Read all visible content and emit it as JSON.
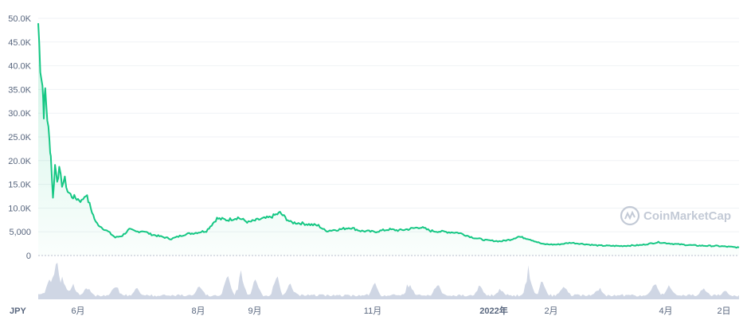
{
  "chart_data": {
    "type": "area",
    "currency_label": "JPY",
    "watermark": "CoinMarketCap",
    "y_ticks": [
      "0",
      "5,000",
      "10.0K",
      "15.0K",
      "20.0K",
      "25.0K",
      "30.0K",
      "35.0K",
      "40.0K",
      "45.0K",
      "50.0K"
    ],
    "ylim": [
      0,
      50000
    ],
    "x_ticks": [
      {
        "label": "6月",
        "bold": false
      },
      {
        "label": "8月",
        "bold": false
      },
      {
        "label": "9月",
        "bold": false
      },
      {
        "label": "11月",
        "bold": false
      },
      {
        "label": "2022年",
        "bold": true
      },
      {
        "label": "2月",
        "bold": false
      },
      {
        "label": "4月",
        "bold": false
      },
      {
        "label": "2日",
        "bold": false
      }
    ],
    "series": [
      {
        "kind": "price",
        "color": "#16c784",
        "points": [
          [
            0,
            49000
          ],
          [
            0.003,
            40000
          ],
          [
            0.006,
            36000
          ],
          [
            0.008,
            30000
          ],
          [
            0.01,
            35000
          ],
          [
            0.013,
            29000
          ],
          [
            0.016,
            24000
          ],
          [
            0.018,
            21000
          ],
          [
            0.021,
            12000
          ],
          [
            0.024,
            19000
          ],
          [
            0.027,
            16000
          ],
          [
            0.03,
            18000
          ],
          [
            0.034,
            15000
          ],
          [
            0.038,
            16000
          ],
          [
            0.042,
            13500
          ],
          [
            0.048,
            12500
          ],
          [
            0.055,
            12000
          ],
          [
            0.062,
            11500
          ],
          [
            0.068,
            13000
          ],
          [
            0.075,
            10000
          ],
          [
            0.082,
            7000
          ],
          [
            0.09,
            6000
          ],
          [
            0.1,
            5000
          ],
          [
            0.11,
            3800
          ],
          [
            0.12,
            4200
          ],
          [
            0.13,
            5500
          ],
          [
            0.14,
            5000
          ],
          [
            0.15,
            5200
          ],
          [
            0.16,
            4500
          ],
          [
            0.175,
            4000
          ],
          [
            0.19,
            3500
          ],
          [
            0.21,
            4500
          ],
          [
            0.225,
            4800
          ],
          [
            0.24,
            5200
          ],
          [
            0.255,
            7800
          ],
          [
            0.27,
            7500
          ],
          [
            0.285,
            8000
          ],
          [
            0.3,
            7000
          ],
          [
            0.315,
            7600
          ],
          [
            0.33,
            8000
          ],
          [
            0.345,
            9000
          ],
          [
            0.36,
            7000
          ],
          [
            0.375,
            6800
          ],
          [
            0.39,
            6500
          ],
          [
            0.4,
            6300
          ],
          [
            0.41,
            5200
          ],
          [
            0.43,
            5500
          ],
          [
            0.445,
            5900
          ],
          [
            0.46,
            5200
          ],
          [
            0.48,
            5000
          ],
          [
            0.5,
            5500
          ],
          [
            0.515,
            5300
          ],
          [
            0.53,
            5600
          ],
          [
            0.545,
            6000
          ],
          [
            0.56,
            5200
          ],
          [
            0.58,
            5000
          ],
          [
            0.6,
            4800
          ],
          [
            0.62,
            3800
          ],
          [
            0.64,
            3200
          ],
          [
            0.66,
            3000
          ],
          [
            0.675,
            3400
          ],
          [
            0.685,
            4000
          ],
          [
            0.7,
            3500
          ],
          [
            0.72,
            2400
          ],
          [
            0.74,
            2300
          ],
          [
            0.76,
            2700
          ],
          [
            0.78,
            2400
          ],
          [
            0.8,
            2100
          ],
          [
            0.83,
            2000
          ],
          [
            0.86,
            2200
          ],
          [
            0.885,
            2800
          ],
          [
            0.91,
            2400
          ],
          [
            0.94,
            2100
          ],
          [
            0.97,
            2000
          ],
          [
            1.0,
            1700
          ]
        ]
      },
      {
        "kind": "volume",
        "color": "#cfd6e4",
        "spikes": [
          [
            0.015,
            0.35
          ],
          [
            0.025,
            0.85
          ],
          [
            0.035,
            0.45
          ],
          [
            0.05,
            0.3
          ],
          [
            0.07,
            0.22
          ],
          [
            0.11,
            0.28
          ],
          [
            0.14,
            0.2
          ],
          [
            0.23,
            0.25
          ],
          [
            0.27,
            0.55
          ],
          [
            0.29,
            0.6
          ],
          [
            0.31,
            0.4
          ],
          [
            0.34,
            0.55
          ],
          [
            0.36,
            0.3
          ],
          [
            0.48,
            0.3
          ],
          [
            0.53,
            0.38
          ],
          [
            0.57,
            0.3
          ],
          [
            0.63,
            0.28
          ],
          [
            0.66,
            0.2
          ],
          [
            0.7,
            0.7
          ],
          [
            0.72,
            0.4
          ],
          [
            0.75,
            0.28
          ],
          [
            0.8,
            0.2
          ],
          [
            0.88,
            0.32
          ],
          [
            0.9,
            0.28
          ],
          [
            0.95,
            0.2
          ],
          [
            0.98,
            0.15
          ]
        ]
      }
    ]
  }
}
